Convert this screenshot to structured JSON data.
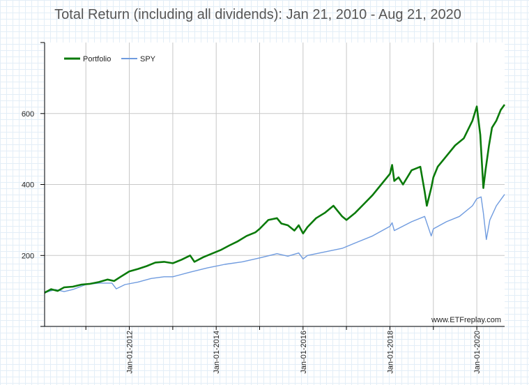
{
  "chart_data": {
    "type": "line",
    "title": "Total Return (including all dividends): Jan 21, 2010 - Aug 21, 2020",
    "watermark": "www.ETFreplay.com",
    "xlabel": "",
    "ylabel": "",
    "x_range": [
      2010.05,
      2020.64
    ],
    "ylim": [
      0,
      800
    ],
    "y_ticks": [
      200,
      400,
      600
    ],
    "y_tick_labels": [
      "200",
      "400",
      "600"
    ],
    "x_ticks": [
      2012,
      2014,
      2016,
      2018,
      2020
    ],
    "x_tick_labels": [
      "Jan-01-2012",
      "Jan-01-2014",
      "Jan-01-2016",
      "Jan-01-2018",
      "Jan-01-2020"
    ],
    "x_gridlines": [
      2011,
      2012,
      2013,
      2014,
      2015,
      2016,
      2017,
      2018,
      2019,
      2020
    ],
    "legend_position": "top-left",
    "series": [
      {
        "name": "Portfolio",
        "color": "#0a7a0a",
        "x": [
          2010.05,
          2010.2,
          2010.35,
          2010.5,
          2010.7,
          2010.9,
          2011.1,
          2011.3,
          2011.5,
          2011.65,
          2011.8,
          2012.0,
          2012.2,
          2012.4,
          2012.6,
          2012.8,
          2013.0,
          2013.2,
          2013.4,
          2013.5,
          2013.7,
          2013.9,
          2014.1,
          2014.3,
          2014.5,
          2014.7,
          2014.9,
          2015.0,
          2015.2,
          2015.4,
          2015.5,
          2015.65,
          2015.8,
          2015.9,
          2016.0,
          2016.1,
          2016.3,
          2016.5,
          2016.7,
          2016.9,
          2017.0,
          2017.2,
          2017.4,
          2017.6,
          2017.8,
          2018.0,
          2018.05,
          2018.1,
          2018.2,
          2018.3,
          2018.5,
          2018.7,
          2018.8,
          2018.85,
          2018.95,
          2019.0,
          2019.1,
          2019.3,
          2019.5,
          2019.7,
          2019.9,
          2020.0,
          2020.08,
          2020.15,
          2020.2,
          2020.28,
          2020.35,
          2020.45,
          2020.55,
          2020.64
        ],
        "values": [
          95,
          105,
          100,
          110,
          112,
          118,
          120,
          125,
          132,
          128,
          140,
          155,
          162,
          170,
          180,
          182,
          178,
          188,
          200,
          182,
          195,
          205,
          215,
          228,
          240,
          255,
          265,
          275,
          300,
          305,
          290,
          285,
          270,
          285,
          262,
          280,
          305,
          320,
          340,
          310,
          300,
          320,
          345,
          370,
          400,
          430,
          455,
          410,
          420,
          400,
          440,
          450,
          380,
          340,
          390,
          420,
          450,
          480,
          510,
          530,
          580,
          620,
          540,
          390,
          440,
          510,
          560,
          580,
          610,
          625
        ]
      },
      {
        "name": "SPY",
        "color": "#6f9bdf",
        "x": [
          2010.05,
          2010.3,
          2010.5,
          2010.7,
          2011.0,
          2011.3,
          2011.6,
          2011.7,
          2011.9,
          2012.2,
          2012.5,
          2012.8,
          2013.0,
          2013.4,
          2013.8,
          2014.2,
          2014.6,
          2015.0,
          2015.4,
          2015.65,
          2015.9,
          2016.0,
          2016.1,
          2016.5,
          2016.9,
          2017.2,
          2017.6,
          2018.0,
          2018.05,
          2018.1,
          2018.5,
          2018.8,
          2018.95,
          2019.0,
          2019.3,
          2019.6,
          2019.9,
          2020.0,
          2020.1,
          2020.15,
          2020.22,
          2020.3,
          2020.45,
          2020.64
        ],
        "values": [
          95,
          104,
          98,
          104,
          118,
          122,
          122,
          106,
          118,
          125,
          135,
          140,
          140,
          153,
          165,
          175,
          182,
          193,
          205,
          198,
          207,
          190,
          200,
          210,
          220,
          235,
          255,
          282,
          292,
          270,
          295,
          310,
          255,
          275,
          295,
          310,
          340,
          360,
          365,
          320,
          245,
          300,
          340,
          372
        ]
      }
    ]
  }
}
